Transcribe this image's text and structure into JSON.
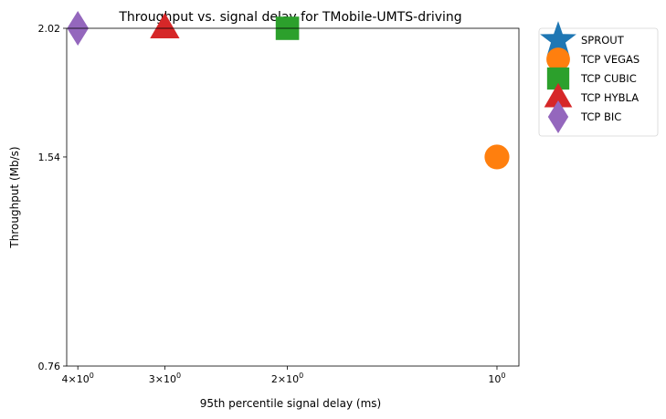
{
  "chart_data": {
    "type": "scatter",
    "title": "Throughput vs. signal delay for TMobile-UMTS-driving",
    "xlabel": "95th percentile signal delay (ms)",
    "ylabel": "Throughput (Mb/s)",
    "x_scale": "log",
    "x_inverted": true,
    "xlim": [
      4.15,
      0.93
    ],
    "ylim": [
      0.76,
      2.02
    ],
    "x_ticks": [
      {
        "value": 4,
        "base": "4",
        "mant": "10",
        "exp": "0"
      },
      {
        "value": 3,
        "base": "3",
        "mant": "10",
        "exp": "0"
      },
      {
        "value": 2,
        "base": "2",
        "mant": "10",
        "exp": "0"
      },
      {
        "value": 1,
        "base": "",
        "mant": "10",
        "exp": "0"
      }
    ],
    "y_ticks": [
      {
        "value": 0.76,
        "label": "0.76"
      },
      {
        "value": 1.54,
        "label": "1.54"
      },
      {
        "value": 2.02,
        "label": "2.02"
      }
    ],
    "legend_position": "outside top-right",
    "series": [
      {
        "name": "SPROUT",
        "marker": "star",
        "color": "#1f77b4",
        "points": []
      },
      {
        "name": "TCP VEGAS",
        "marker": "circle",
        "color": "#ff7f0e",
        "points": [
          {
            "x": 1.0,
            "y": 1.54
          }
        ]
      },
      {
        "name": "TCP CUBIC",
        "marker": "square",
        "color": "#2ca02c",
        "points": [
          {
            "x": 2.0,
            "y": 2.02
          }
        ]
      },
      {
        "name": "TCP HYBLA",
        "marker": "triangle",
        "color": "#d62728",
        "points": [
          {
            "x": 3.0,
            "y": 2.02
          }
        ]
      },
      {
        "name": "TCP BIC",
        "marker": "diamond",
        "color": "#9467bd",
        "points": [
          {
            "x": 4.0,
            "y": 2.02
          }
        ]
      }
    ]
  }
}
